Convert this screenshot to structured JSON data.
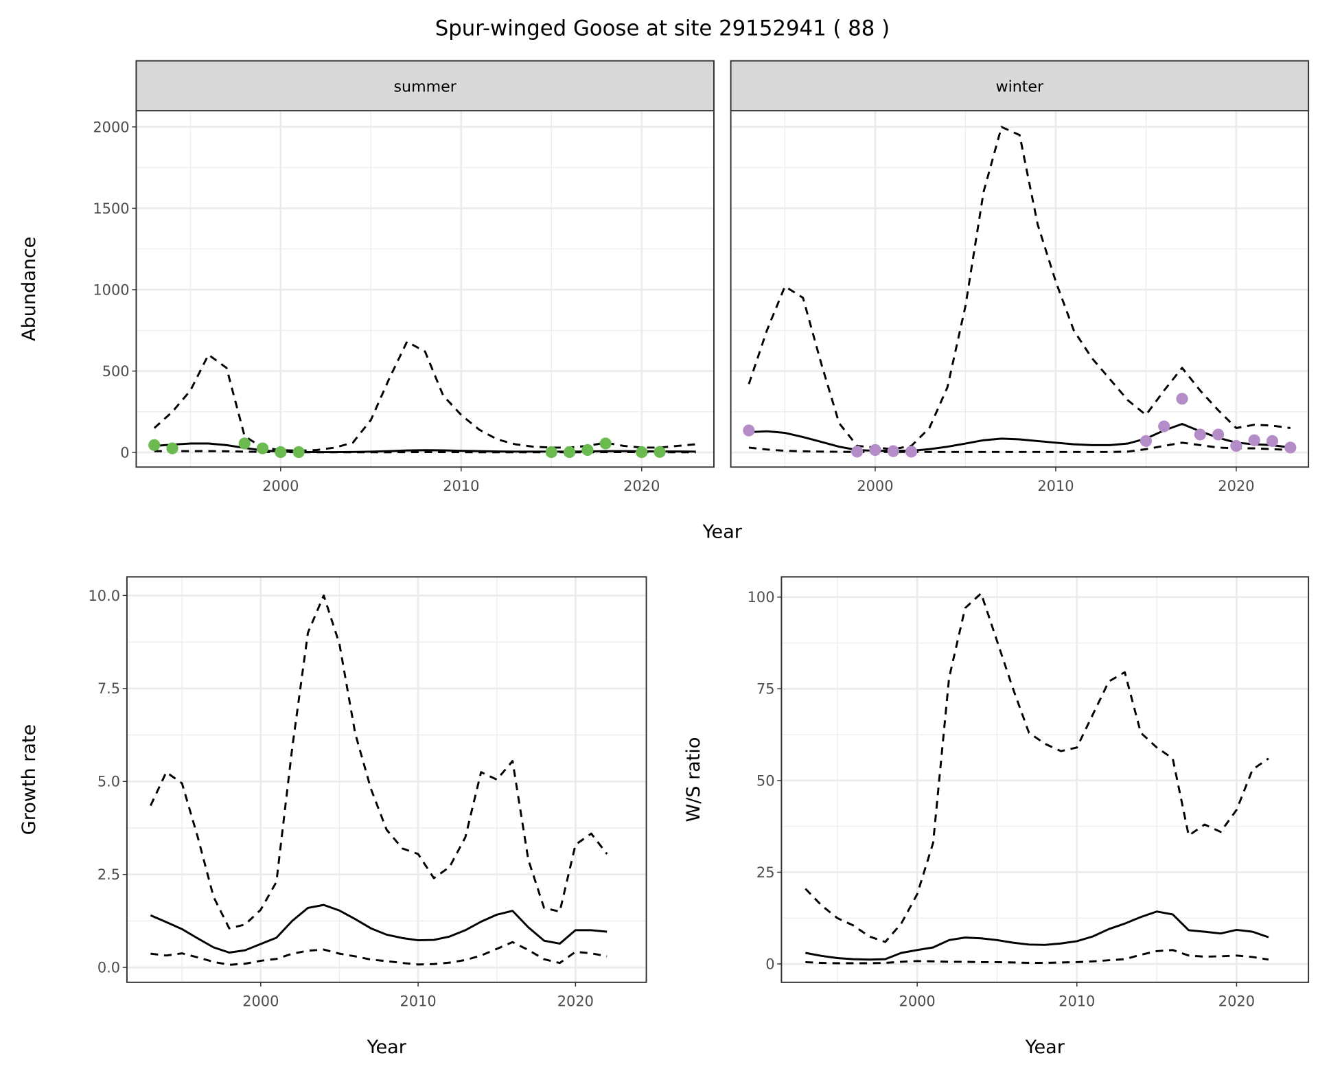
{
  "title": "Spur-winged Goose at site 29152941 ( 88 )",
  "colors": {
    "summer_points": "#6BBA4F",
    "winter_points": "#B48CC8",
    "lines": "#000000"
  },
  "chart_data": [
    {
      "type": "line",
      "facet": "summer",
      "xlabel": "Year",
      "ylabel": "Abundance",
      "xlim": [
        1992,
        2024
      ],
      "ylim": [
        -90,
        2100
      ],
      "xticks": [
        "2000",
        "2010",
        "2020"
      ],
      "yticks": [
        "0",
        "500",
        "1000",
        "1500",
        "2000"
      ],
      "x": [
        1993,
        1994,
        1995,
        1996,
        1997,
        1998,
        1999,
        2000,
        2001,
        2002,
        2003,
        2004,
        2005,
        2006,
        2007,
        2008,
        2009,
        2010,
        2011,
        2012,
        2013,
        2014,
        2015,
        2016,
        2017,
        2018,
        2019,
        2020,
        2021,
        2022,
        2023
      ],
      "series": [
        {
          "name": "estimate",
          "style": "solid",
          "values": [
            40,
            48,
            55,
            55,
            45,
            28,
            12,
            5,
            3,
            2,
            2,
            3,
            5,
            8,
            12,
            14,
            13,
            10,
            8,
            6,
            5,
            5,
            5,
            5,
            6,
            8,
            8,
            7,
            6,
            6,
            5
          ]
        },
        {
          "name": "upper",
          "style": "dashed",
          "values": [
            150,
            250,
            380,
            600,
            520,
            100,
            30,
            15,
            10,
            15,
            30,
            60,
            200,
            450,
            680,
            620,
            350,
            230,
            140,
            80,
            50,
            35,
            30,
            30,
            40,
            60,
            40,
            30,
            30,
            40,
            50
          ]
        },
        {
          "name": "lower",
          "style": "dashed",
          "values": [
            8,
            8,
            8,
            8,
            7,
            5,
            3,
            2,
            1,
            1,
            1,
            1,
            1,
            1,
            2,
            2,
            2,
            2,
            1,
            1,
            1,
            1,
            1,
            1,
            1,
            2,
            2,
            2,
            1,
            1,
            1
          ]
        }
      ],
      "points": {
        "x": [
          1993,
          1994,
          1998,
          1999,
          2000,
          2001,
          2015,
          2016,
          2017,
          2018,
          2020,
          2021
        ],
        "y": [
          45,
          25,
          55,
          25,
          2,
          2,
          2,
          2,
          15,
          55,
          2,
          3
        ]
      }
    },
    {
      "type": "line",
      "facet": "winter",
      "xlabel": "Year",
      "ylabel": "Abundance",
      "xlim": [
        1992,
        2024
      ],
      "ylim": [
        -90,
        2100
      ],
      "xticks": [
        "2000",
        "2010",
        "2020"
      ],
      "yticks": [
        "0",
        "500",
        "1000",
        "1500",
        "2000"
      ],
      "x": [
        1993,
        1994,
        1995,
        1996,
        1997,
        1998,
        1999,
        2000,
        2001,
        2002,
        2003,
        2004,
        2005,
        2006,
        2007,
        2008,
        2009,
        2010,
        2011,
        2012,
        2013,
        2014,
        2015,
        2016,
        2017,
        2018,
        2019,
        2020,
        2021,
        2022,
        2023
      ],
      "series": [
        {
          "name": "estimate",
          "style": "solid",
          "values": [
            125,
            130,
            120,
            95,
            65,
            35,
            15,
            10,
            10,
            10,
            20,
            35,
            55,
            75,
            85,
            80,
            70,
            60,
            50,
            45,
            45,
            55,
            85,
            135,
            175,
            130,
            90,
            60,
            50,
            45,
            30
          ]
        },
        {
          "name": "upper",
          "style": "dashed",
          "values": [
            420,
            750,
            1020,
            950,
            550,
            180,
            40,
            30,
            20,
            40,
            150,
            400,
            900,
            1600,
            2000,
            1950,
            1400,
            1050,
            750,
            580,
            450,
            320,
            230,
            380,
            520,
            380,
            260,
            150,
            170,
            165,
            150
          ]
        },
        {
          "name": "lower",
          "style": "dashed",
          "values": [
            30,
            18,
            10,
            7,
            5,
            4,
            3,
            3,
            3,
            3,
            3,
            3,
            3,
            3,
            3,
            3,
            3,
            3,
            3,
            3,
            3,
            5,
            20,
            40,
            60,
            45,
            30,
            25,
            25,
            20,
            15
          ]
        }
      ],
      "points": {
        "x": [
          1993,
          1999,
          2000,
          2001,
          2002,
          2015,
          2016,
          2017,
          2018,
          2019,
          2020,
          2021,
          2022,
          2023
        ],
        "y": [
          135,
          5,
          15,
          8,
          5,
          70,
          160,
          330,
          110,
          110,
          40,
          75,
          70,
          30
        ]
      }
    },
    {
      "type": "line",
      "xlabel": "Year",
      "ylabel": "Growth rate",
      "xlim": [
        1991.5,
        2024.5
      ],
      "ylim": [
        -0.4,
        10.5
      ],
      "xticks": [
        "2000",
        "2010",
        "2020"
      ],
      "yticks": [
        "0.0",
        "2.5",
        "5.0",
        "7.5",
        "10.0"
      ],
      "x": [
        1993,
        1994,
        1995,
        1996,
        1997,
        1998,
        1999,
        2000,
        2001,
        2002,
        2003,
        2004,
        2005,
        2006,
        2007,
        2008,
        2009,
        2010,
        2011,
        2012,
        2013,
        2014,
        2015,
        2016,
        2017,
        2018,
        2019,
        2020,
        2021,
        2022
      ],
      "series": [
        {
          "name": "estimate",
          "style": "solid",
          "values": [
            1.4,
            1.22,
            1.03,
            0.78,
            0.54,
            0.4,
            0.46,
            0.63,
            0.8,
            1.25,
            1.6,
            1.68,
            1.53,
            1.3,
            1.05,
            0.88,
            0.79,
            0.73,
            0.74,
            0.83,
            1.0,
            1.23,
            1.42,
            1.52,
            1.08,
            0.72,
            0.64,
            1.0,
            1.0,
            0.96
          ]
        },
        {
          "name": "upper",
          "style": "dashed",
          "values": [
            4.35,
            5.25,
            4.95,
            3.5,
            1.9,
            1.05,
            1.15,
            1.55,
            2.3,
            5.9,
            9.0,
            10.0,
            8.7,
            6.3,
            4.8,
            3.7,
            3.2,
            3.05,
            2.4,
            2.7,
            3.5,
            5.25,
            5.05,
            5.55,
            2.9,
            1.6,
            1.5,
            3.3,
            3.6,
            3.05
          ]
        },
        {
          "name": "lower",
          "style": "dashed",
          "values": [
            0.37,
            0.32,
            0.38,
            0.27,
            0.15,
            0.07,
            0.1,
            0.18,
            0.23,
            0.37,
            0.45,
            0.48,
            0.37,
            0.3,
            0.21,
            0.17,
            0.12,
            0.08,
            0.09,
            0.13,
            0.2,
            0.32,
            0.5,
            0.68,
            0.47,
            0.22,
            0.12,
            0.42,
            0.38,
            0.3
          ]
        }
      ]
    },
    {
      "type": "line",
      "xlabel": "Year",
      "ylabel": "W/S ratio",
      "xlim": [
        1991.5,
        2024.5
      ],
      "ylim": [
        -5,
        105.5
      ],
      "xticks": [
        "2000",
        "2010",
        "2020"
      ],
      "yticks": [
        "0",
        "25",
        "50",
        "75",
        "100"
      ],
      "x": [
        1993,
        1994,
        1995,
        1996,
        1997,
        1998,
        1999,
        2000,
        2001,
        2002,
        2003,
        2004,
        2005,
        2006,
        2007,
        2008,
        2009,
        2010,
        2011,
        2012,
        2013,
        2014,
        2015,
        2016,
        2017,
        2018,
        2019,
        2020,
        2021,
        2022
      ],
      "series": [
        {
          "name": "estimate",
          "style": "solid",
          "values": [
            3,
            2.2,
            1.6,
            1.3,
            1.2,
            1.3,
            3,
            3.8,
            4.5,
            6.5,
            7.2,
            7,
            6.5,
            5.8,
            5.3,
            5.2,
            5.6,
            6.2,
            7.5,
            9.5,
            11,
            12.8,
            14.3,
            13.5,
            9.2,
            8.8,
            8.3,
            9.3,
            8.8,
            7.3
          ]
        },
        {
          "name": "upper",
          "style": "dashed",
          "values": [
            20.5,
            16,
            12.5,
            10.5,
            7.5,
            6,
            11,
            19,
            33,
            78,
            97,
            101,
            88,
            75,
            63,
            60,
            58,
            59,
            68,
            77,
            79.5,
            63,
            59,
            56,
            35,
            38,
            36,
            42,
            53,
            56
          ]
        },
        {
          "name": "lower",
          "style": "dashed",
          "values": [
            0.5,
            0.3,
            0.2,
            0.2,
            0.2,
            0.3,
            0.6,
            0.8,
            0.7,
            0.6,
            0.6,
            0.5,
            0.5,
            0.4,
            0.3,
            0.3,
            0.4,
            0.5,
            0.7,
            1.0,
            1.3,
            2.5,
            3.5,
            3.8,
            2.3,
            2.0,
            2.1,
            2.3,
            1.9,
            1.2
          ]
        }
      ]
    }
  ]
}
